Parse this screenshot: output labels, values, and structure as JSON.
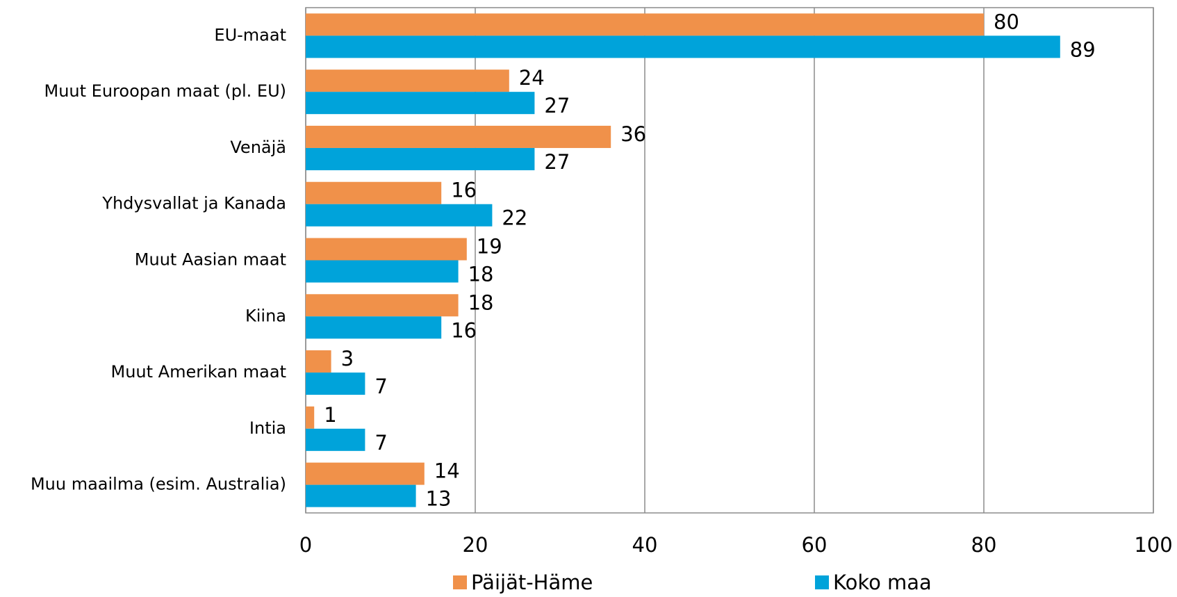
{
  "chart_data": {
    "type": "bar",
    "orientation": "horizontal",
    "categories": [
      "EU-maat",
      "Muut Euroopan maat (pl. EU)",
      "Venäjä",
      "Yhdysvallat ja Kanada",
      "Muut Aasian maat",
      "Kiina",
      "Muut Amerikan maat",
      "Intia",
      "Muu maailma (esim. Australia)"
    ],
    "series": [
      {
        "name": "Päijät-Häme",
        "color": "#f0914a",
        "values": [
          80,
          24,
          36,
          16,
          19,
          18,
          3,
          1,
          14
        ]
      },
      {
        "name": "Koko maa",
        "color": "#00a3da",
        "values": [
          89,
          27,
          27,
          22,
          18,
          16,
          7,
          7,
          13
        ]
      }
    ],
    "xlim": [
      0,
      100
    ],
    "xticks": [
      0,
      20,
      40,
      60,
      80,
      100
    ],
    "grid": true,
    "legend": "bottom"
  }
}
